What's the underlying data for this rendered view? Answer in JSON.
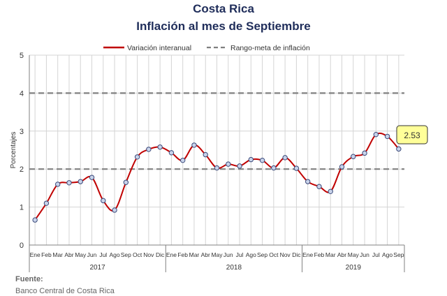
{
  "header": {
    "title": "Costa Rica",
    "subtitle": "Inflación al mes de Septiembre"
  },
  "footer": {
    "source_label": "Fuente:",
    "source_text": "Banco Central de Costa Rica"
  },
  "chart_data": {
    "type": "line",
    "ylabel": "Porcentajes",
    "ylim": [
      0,
      5
    ],
    "yticks": [
      0,
      1,
      2,
      3,
      4,
      5
    ],
    "grid": true,
    "legend_position": "top-center",
    "callout": "2.53",
    "categories": [
      "Ene",
      "Feb",
      "Mar",
      "Abr",
      "May",
      "Jun",
      "Jul",
      "Ago",
      "Sep",
      "Oct",
      "Nov",
      "Dic",
      "Ene",
      "Feb",
      "Mar",
      "Abr",
      "May",
      "Jun",
      "Jul",
      "Ago",
      "Sep",
      "Oct",
      "Nov",
      "Dic",
      "Ene",
      "Feb",
      "Mar",
      "Abr",
      "May",
      "Jun",
      "Jul",
      "Ago",
      "Sep"
    ],
    "years": [
      {
        "label": "2017",
        "count": 12
      },
      {
        "label": "2018",
        "count": 12
      },
      {
        "label": "2019",
        "count": 9
      }
    ],
    "series": [
      {
        "name": "Variación interanual",
        "color": "#c00000",
        "values": [
          0.66,
          1.1,
          1.6,
          1.64,
          1.67,
          1.78,
          1.17,
          0.92,
          1.65,
          2.32,
          2.52,
          2.58,
          2.43,
          2.23,
          2.63,
          2.38,
          2.03,
          2.13,
          2.08,
          2.25,
          2.23,
          2.03,
          2.3,
          2.02,
          1.67,
          1.54,
          1.41,
          2.06,
          2.33,
          2.42,
          2.91,
          2.86,
          2.53
        ]
      },
      {
        "name": "Rango-meta de inflación",
        "color": "#808080",
        "style": "dashed",
        "bounds": [
          2,
          4
        ]
      }
    ]
  }
}
